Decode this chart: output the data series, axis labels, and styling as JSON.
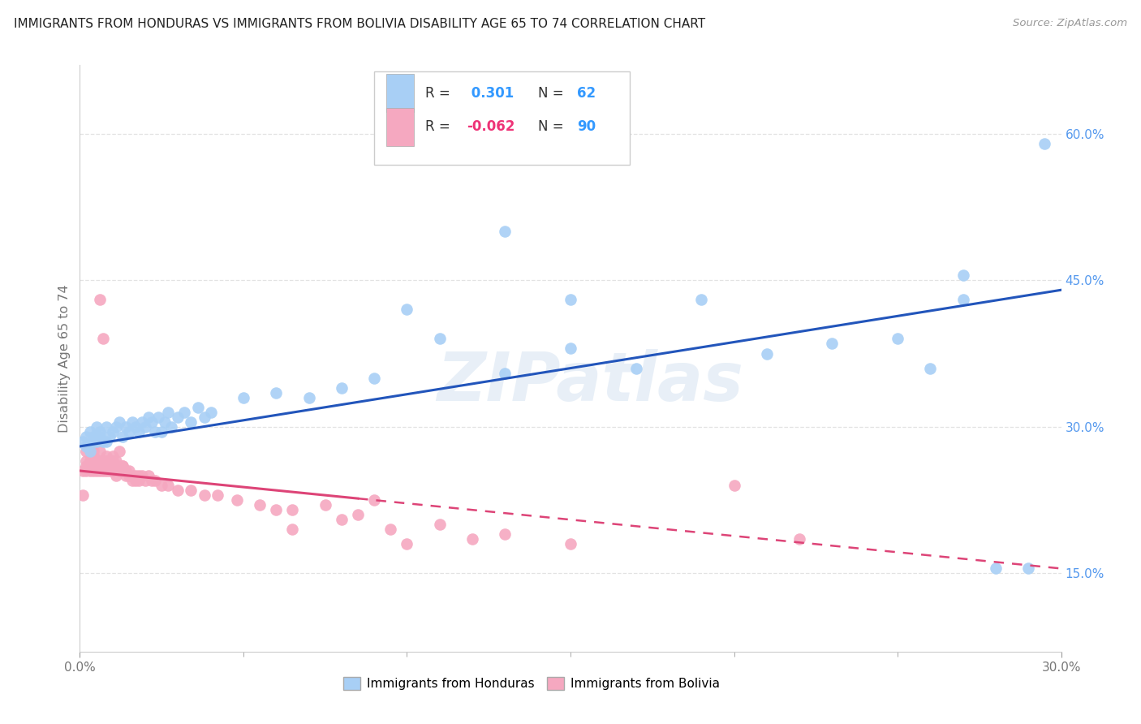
{
  "title": "IMMIGRANTS FROM HONDURAS VS IMMIGRANTS FROM BOLIVIA DISABILITY AGE 65 TO 74 CORRELATION CHART",
  "source": "Source: ZipAtlas.com",
  "ylabel": "Disability Age 65 to 74",
  "xlim": [
    0.0,
    0.3
  ],
  "ylim": [
    0.07,
    0.67
  ],
  "yticks": [
    0.15,
    0.3,
    0.45,
    0.6
  ],
  "ytick_labels": [
    "15.0%",
    "30.0%",
    "45.0%",
    "60.0%"
  ],
  "xtick_labels_shown": [
    "0.0%",
    "30.0%"
  ],
  "legend1_R": "0.301",
  "legend1_N": "62",
  "legend2_R": "-0.062",
  "legend2_N": "90",
  "blue_color": "#A8CFF5",
  "pink_color": "#F5A8C0",
  "blue_line_color": "#2255BB",
  "pink_line_color": "#DD4477",
  "legend_label1": "Immigrants from Honduras",
  "legend_label2": "Immigrants from Bolivia",
  "background_color": "#FFFFFF",
  "grid_color": "#DDDDDD",
  "watermark_text": "ZIPatlas",
  "watermark_color": "#CCCCCC",
  "blue_x": [
    0.001,
    0.002,
    0.002,
    0.003,
    0.003,
    0.004,
    0.004,
    0.005,
    0.005,
    0.006,
    0.006,
    0.007,
    0.008,
    0.008,
    0.009,
    0.01,
    0.011,
    0.012,
    0.013,
    0.014,
    0.015,
    0.016,
    0.017,
    0.018,
    0.019,
    0.02,
    0.021,
    0.022,
    0.023,
    0.024,
    0.025,
    0.026,
    0.027,
    0.028,
    0.03,
    0.032,
    0.034,
    0.036,
    0.038,
    0.04,
    0.05,
    0.06,
    0.07,
    0.08,
    0.09,
    0.1,
    0.11,
    0.13,
    0.15,
    0.17,
    0.19,
    0.21,
    0.23,
    0.25,
    0.26,
    0.27,
    0.28,
    0.29,
    0.295,
    0.13,
    0.15,
    0.27
  ],
  "blue_y": [
    0.285,
    0.29,
    0.28,
    0.295,
    0.275,
    0.29,
    0.285,
    0.3,
    0.285,
    0.29,
    0.295,
    0.285,
    0.3,
    0.285,
    0.29,
    0.295,
    0.3,
    0.305,
    0.29,
    0.3,
    0.295,
    0.305,
    0.3,
    0.295,
    0.305,
    0.3,
    0.31,
    0.305,
    0.295,
    0.31,
    0.295,
    0.305,
    0.315,
    0.3,
    0.31,
    0.315,
    0.305,
    0.32,
    0.31,
    0.315,
    0.33,
    0.335,
    0.33,
    0.34,
    0.35,
    0.42,
    0.39,
    0.355,
    0.38,
    0.36,
    0.43,
    0.375,
    0.385,
    0.39,
    0.36,
    0.43,
    0.155,
    0.155,
    0.59,
    0.5,
    0.43,
    0.455
  ],
  "pink_x": [
    0.001,
    0.001,
    0.002,
    0.002,
    0.002,
    0.003,
    0.003,
    0.003,
    0.004,
    0.004,
    0.004,
    0.005,
    0.005,
    0.005,
    0.006,
    0.006,
    0.006,
    0.007,
    0.007,
    0.007,
    0.008,
    0.008,
    0.008,
    0.009,
    0.009,
    0.01,
    0.01,
    0.01,
    0.011,
    0.011,
    0.012,
    0.012,
    0.013,
    0.013,
    0.014,
    0.014,
    0.015,
    0.015,
    0.016,
    0.016,
    0.017,
    0.017,
    0.018,
    0.018,
    0.019,
    0.02,
    0.021,
    0.022,
    0.023,
    0.025,
    0.027,
    0.03,
    0.034,
    0.038,
    0.042,
    0.048,
    0.055,
    0.065,
    0.08,
    0.095,
    0.11,
    0.13,
    0.15,
    0.01,
    0.012,
    0.008,
    0.006,
    0.007,
    0.004,
    0.003,
    0.002,
    0.003,
    0.004,
    0.005,
    0.01,
    0.006,
    0.007,
    0.008,
    0.009,
    0.011,
    0.013,
    0.06,
    0.085,
    0.065,
    0.22,
    0.12,
    0.075,
    0.09,
    0.1,
    0.2
  ],
  "pink_y": [
    0.23,
    0.255,
    0.255,
    0.26,
    0.265,
    0.255,
    0.265,
    0.26,
    0.265,
    0.255,
    0.27,
    0.26,
    0.265,
    0.255,
    0.265,
    0.26,
    0.255,
    0.26,
    0.255,
    0.265,
    0.26,
    0.255,
    0.265,
    0.255,
    0.26,
    0.255,
    0.265,
    0.255,
    0.26,
    0.25,
    0.255,
    0.26,
    0.255,
    0.26,
    0.25,
    0.255,
    0.25,
    0.255,
    0.25,
    0.245,
    0.25,
    0.245,
    0.25,
    0.245,
    0.25,
    0.245,
    0.25,
    0.245,
    0.245,
    0.24,
    0.24,
    0.235,
    0.235,
    0.23,
    0.23,
    0.225,
    0.22,
    0.215,
    0.205,
    0.195,
    0.2,
    0.19,
    0.18,
    0.27,
    0.275,
    0.27,
    0.275,
    0.265,
    0.275,
    0.26,
    0.275,
    0.265,
    0.27,
    0.265,
    0.265,
    0.43,
    0.39,
    0.265,
    0.265,
    0.265,
    0.26,
    0.215,
    0.21,
    0.195,
    0.185,
    0.185,
    0.22,
    0.225,
    0.18,
    0.24
  ]
}
